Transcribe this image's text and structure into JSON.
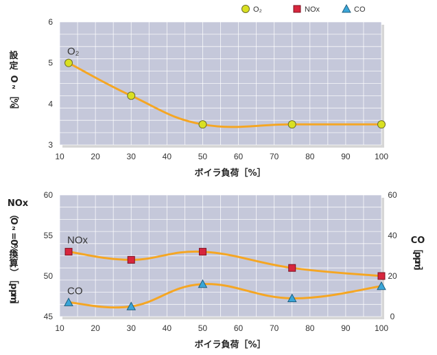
{
  "colors": {
    "curve": "#f5a623",
    "o2_marker": "#d9e021",
    "nox_marker": "#d7263d",
    "co_marker": "#3aa6d8",
    "plot_bg": "#c5c8da",
    "grid": "#ffffff"
  },
  "legend": {
    "items": [
      {
        "label": "O₂",
        "shape": "circle",
        "color": "#d9e021"
      },
      {
        "label": "NOx",
        "shape": "square",
        "color": "#d7263d"
      },
      {
        "label": "CO",
        "shape": "triangle",
        "color": "#3aa6d8"
      }
    ]
  },
  "chart_data": [
    {
      "type": "line",
      "xlabel": "ボイラ負荷［%］",
      "ylabel": "設定O₂［%］",
      "xlim": [
        10,
        100
      ],
      "ylim": [
        3,
        6
      ],
      "xticks": [
        10,
        20,
        30,
        40,
        50,
        60,
        70,
        80,
        90,
        100
      ],
      "yticks": [
        3,
        4,
        5,
        6
      ],
      "grid": true,
      "series": [
        {
          "name": "O₂",
          "marker": "circle",
          "x": [
            12.5,
            30,
            50,
            75,
            100
          ],
          "y": [
            5.0,
            4.2,
            3.5,
            3.5,
            3.5
          ]
        }
      ]
    },
    {
      "type": "line",
      "xlabel": "ボイラ負荷［%］",
      "ylabel": "NOx（O₂=0%換算）［ppm］",
      "ylabel_right": "CO［ppm］",
      "xlim": [
        10,
        100
      ],
      "ylim": [
        45,
        60
      ],
      "ylim_right": [
        0,
        60
      ],
      "xticks": [
        10,
        20,
        30,
        40,
        50,
        60,
        70,
        80,
        90,
        100
      ],
      "yticks": [
        45,
        50,
        55,
        60
      ],
      "yticks_right": [
        0,
        20,
        40,
        60
      ],
      "grid": true,
      "series": [
        {
          "name": "NOx",
          "axis": "left",
          "marker": "square",
          "x": [
            12.5,
            30,
            50,
            75,
            100
          ],
          "y": [
            53,
            52,
            53,
            51,
            50
          ]
        },
        {
          "name": "CO",
          "axis": "right",
          "marker": "triangle",
          "x": [
            12.5,
            30,
            50,
            75,
            100
          ],
          "y": [
            7,
            5,
            16,
            9,
            15
          ]
        }
      ]
    }
  ]
}
